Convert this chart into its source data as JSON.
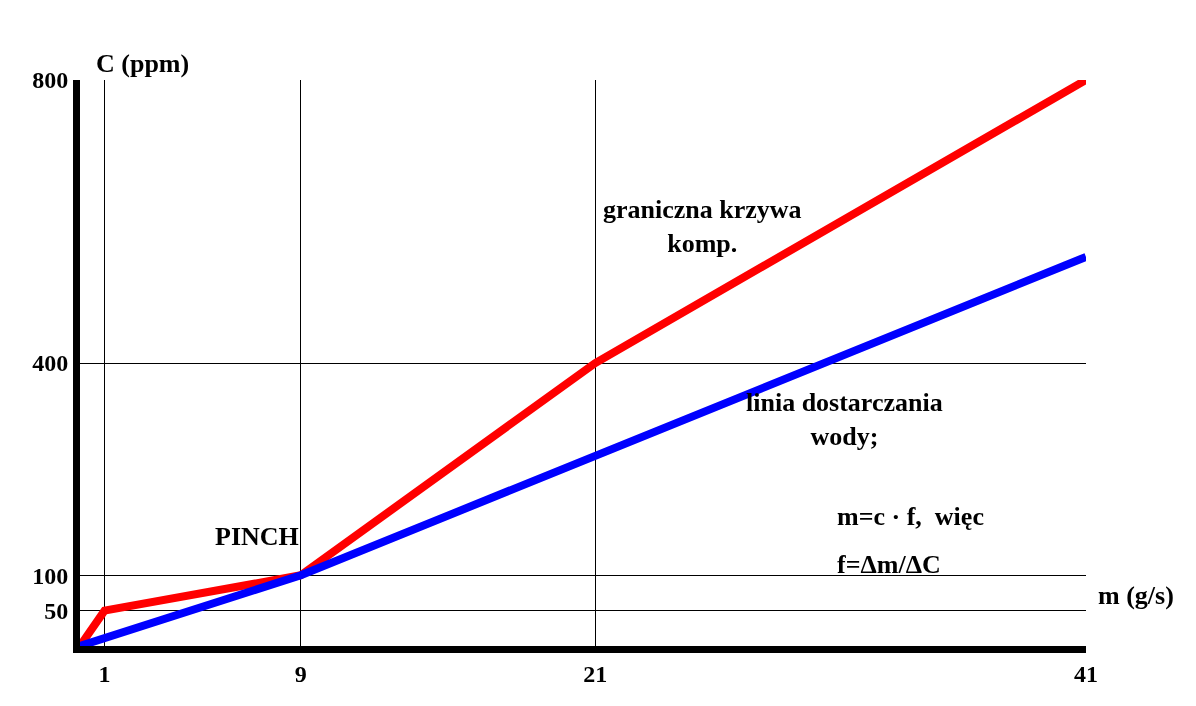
{
  "chart_data": {
    "type": "line",
    "xlabel": "m (g/s)",
    "ylabel": "C (ppm)",
    "series": [
      {
        "name": "graniczna krzywa komp.",
        "color": "#ff0000",
        "x": [
          0,
          1,
          9,
          21,
          41
        ],
        "values": [
          0,
          50,
          100,
          400,
          800
        ]
      },
      {
        "name": "linia dostarczania wody;",
        "color": "#0000ff",
        "x": [
          0,
          9,
          41
        ],
        "values": [
          0,
          100,
          550
        ]
      }
    ],
    "annotations": [
      {
        "text": "PINCH",
        "x": 9,
        "y": 100
      },
      "m=c · f,  więc",
      "f=Δm/ΔC"
    ],
    "xlim": [
      0,
      41
    ],
    "ylim": [
      0,
      800
    ],
    "xticks": [
      1,
      9,
      21,
      41
    ],
    "yticks": [
      50,
      100,
      400,
      800
    ],
    "grid": true,
    "legend": false,
    "marker": "none",
    "line_style": "solid"
  }
}
